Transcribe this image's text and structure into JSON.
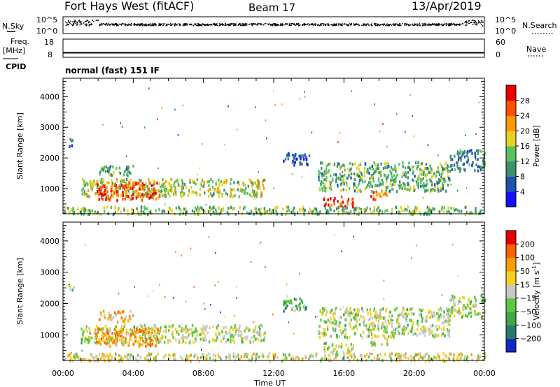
{
  "header": {
    "site": "Fort Hays West (fitACF)",
    "beam": "Beam 17",
    "date": "13/Apr/2019"
  },
  "strips": {
    "nsky_label": "N.Sky",
    "nsky_ticks": [
      "10^5",
      "10^0"
    ],
    "nsearch_label": "N.Search",
    "freq_label": "Freq.",
    "freq_unit": "[MHz]",
    "freq_ticks": [
      "18",
      "8"
    ],
    "nave_ticks": [
      "60",
      "0"
    ],
    "nave_label": "Nave",
    "cpid_label": "CPID",
    "cpid_text": "normal (fast) 151 IF",
    "freq_value_mhz": 10.5,
    "nave_value": 22
  },
  "chart_data": [
    {
      "type": "heatmap",
      "name": "power",
      "xlabel": "Time UT",
      "ylabel": "Slant Range [km]",
      "xlim_hours": [
        0,
        24
      ],
      "ylim_km": [
        180,
        4600
      ],
      "x_ticks": [
        "00:00",
        "04:00",
        "08:00",
        "12:00",
        "16:00",
        "20:00",
        "00:00"
      ],
      "y_ticks": [
        1000,
        2000,
        3000,
        4000
      ],
      "colorbar": {
        "label": "Power [dB]",
        "ticks": [
          "28",
          "24",
          "20",
          "16",
          "12",
          "8",
          "4"
        ],
        "colors": [
          "#1010ff",
          "#2050b0",
          "#3c9070",
          "#58c060",
          "#e6d020",
          "#ff9a00",
          "#ff5000",
          "#e80000"
        ]
      },
      "regions": [
        {
          "t0": 0.3,
          "t1": 0.6,
          "r0": 2400,
          "r1": 2700,
          "v": 0.2
        },
        {
          "t0": 1.0,
          "t1": 11.5,
          "r0": 780,
          "r1": 1350,
          "v": 0.5
        },
        {
          "t0": 1.8,
          "t1": 5.5,
          "r0": 650,
          "r1": 1250,
          "v": 0.85
        },
        {
          "t0": 2.0,
          "t1": 4.0,
          "r0": 1450,
          "r1": 1800,
          "v": 0.4
        },
        {
          "t0": 14.5,
          "t1": 22.0,
          "r0": 950,
          "r1": 1900,
          "v": 0.4
        },
        {
          "t0": 14.8,
          "t1": 16.5,
          "r0": 450,
          "r1": 780,
          "v": 0.9
        },
        {
          "t0": 17.5,
          "t1": 18.5,
          "r0": 680,
          "r1": 950,
          "v": 0.75
        },
        {
          "t0": 22.0,
          "t1": 24.0,
          "r0": 1600,
          "r1": 2300,
          "v": 0.3
        },
        {
          "t0": 12.5,
          "t1": 14.0,
          "r0": 1800,
          "r1": 2200,
          "v": 0.2
        },
        {
          "t0": 0.0,
          "t1": 24.0,
          "r0": 200,
          "r1": 450,
          "v": 0.45
        }
      ]
    },
    {
      "type": "heatmap",
      "name": "velocity",
      "xlabel": "Time UT",
      "ylabel": "Slant Range [km]",
      "xlim_hours": [
        0,
        24
      ],
      "ylim_km": [
        180,
        4600
      ],
      "x_ticks": [
        "00:00",
        "04:00",
        "08:00",
        "12:00",
        "16:00",
        "20:00",
        "00:00"
      ],
      "y_ticks": [
        1000,
        2000,
        3000,
        4000
      ],
      "colorbar": {
        "label": "Velocity [m s",
        "label_sup": "-1",
        "ticks": [
          "200",
          "100",
          "50",
          "15",
          "-15",
          "-50",
          "-100",
          "-200"
        ],
        "colors": [
          "#1028c8",
          "#2a7a6a",
          "#3ea846",
          "#60c840",
          "#c8c8c8",
          "#f5d020",
          "#f5a000",
          "#ff6000",
          "#e80000"
        ]
      },
      "regions": [
        {
          "t0": 0.3,
          "t1": 0.6,
          "r0": 2400,
          "r1": 2700,
          "v": 0.45
        },
        {
          "t0": 1.0,
          "t1": 11.5,
          "r0": 780,
          "r1": 1350,
          "v": 0.5
        },
        {
          "t0": 1.8,
          "t1": 5.5,
          "r0": 650,
          "r1": 1250,
          "v": 0.72
        },
        {
          "t0": 2.0,
          "t1": 4.0,
          "r0": 1450,
          "r1": 1800,
          "v": 0.65
        },
        {
          "t0": 14.5,
          "t1": 22.0,
          "r0": 950,
          "r1": 1900,
          "v": 0.48
        },
        {
          "t0": 14.8,
          "t1": 16.5,
          "r0": 450,
          "r1": 780,
          "v": 0.5
        },
        {
          "t0": 17.5,
          "t1": 18.5,
          "r0": 680,
          "r1": 950,
          "v": 0.5
        },
        {
          "t0": 22.0,
          "t1": 24.0,
          "r0": 1600,
          "r1": 2300,
          "v": 0.45
        },
        {
          "t0": 12.5,
          "t1": 14.0,
          "r0": 1800,
          "r1": 2200,
          "v": 0.3
        },
        {
          "t0": 0.0,
          "t1": 24.0,
          "r0": 200,
          "r1": 450,
          "v": 0.55
        }
      ]
    }
  ]
}
